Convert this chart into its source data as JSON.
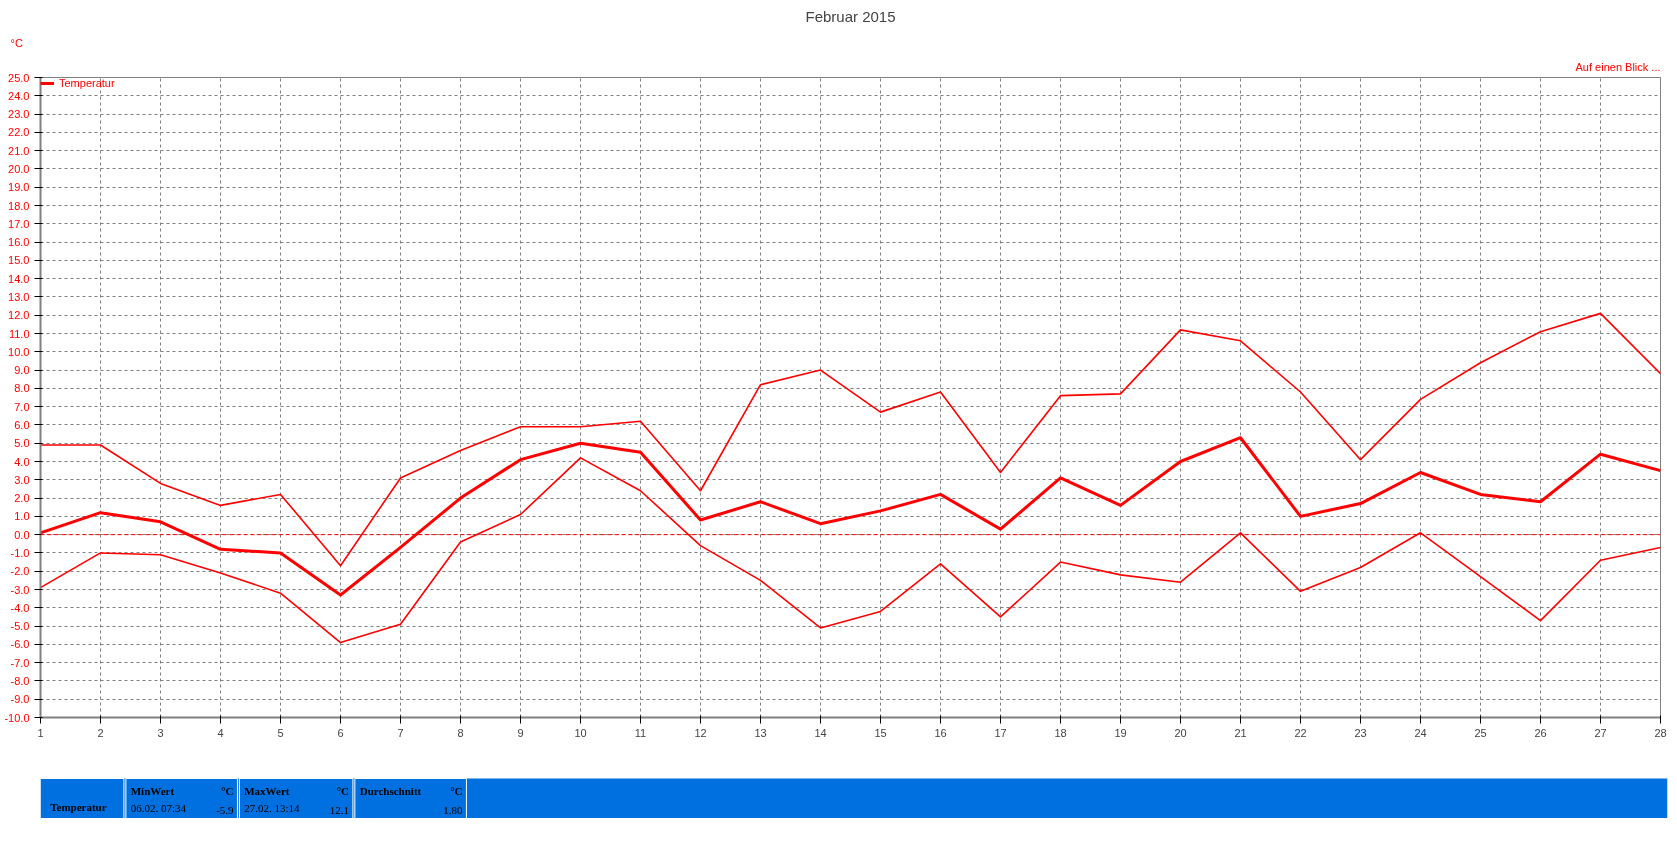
{
  "chart_data": {
    "type": "line",
    "title": "Februar 2015",
    "ylabel": "°C",
    "x": [
      1,
      2,
      3,
      4,
      5,
      6,
      7,
      8,
      9,
      10,
      11,
      12,
      13,
      14,
      15,
      16,
      17,
      18,
      19,
      20,
      21,
      22,
      23,
      24,
      25,
      26,
      27,
      28
    ],
    "series": [
      {
        "color": "#ff0000",
        "values": [
          4.9,
          4.9,
          2.8,
          1.6,
          2.2,
          -1.7,
          3.1,
          4.6,
          5.9,
          5.9,
          6.2,
          2.4,
          8.2,
          9.0,
          6.7,
          7.8,
          3.4,
          7.6,
          7.7,
          11.2,
          10.6,
          7.8,
          4.1,
          7.4,
          9.4,
          11.1,
          12.1,
          8.8
        ]
      },
      {
        "name": "Temperatur",
        "color": "#ff0000",
        "values": [
          0.1,
          1.2,
          0.7,
          -0.8,
          -1.0,
          -3.3,
          -0.7,
          2.0,
          4.1,
          5.0,
          4.5,
          0.8,
          1.8,
          0.6,
          1.3,
          2.2,
          0.3,
          3.1,
          1.6,
          4.0,
          5.3,
          1.0,
          1.7,
          3.4,
          2.2,
          1.8,
          4.4,
          3.5
        ]
      },
      {
        "color": "#ff0000",
        "values": [
          -2.9,
          -1.0,
          -1.1,
          -2.1,
          -3.2,
          -5.9,
          -4.9,
          -0.4,
          1.1,
          4.2,
          2.4,
          -0.6,
          -2.5,
          -5.1,
          -4.2,
          -1.6,
          -4.5,
          -1.5,
          -2.2,
          -2.6,
          0.1,
          -3.1,
          -1.8,
          0.1,
          -2.3,
          -4.7,
          -1.4,
          -0.7
        ]
      }
    ],
    "xlim": [
      1,
      28
    ],
    "xticks": [
      1,
      2,
      3,
      4,
      5,
      6,
      7,
      8,
      9,
      10,
      11,
      12,
      13,
      14,
      15,
      16,
      17,
      18,
      19,
      20,
      21,
      22,
      23,
      24,
      25,
      26,
      27,
      28
    ],
    "ylim": [
      -10,
      25
    ],
    "yticks": [
      {
        "value": -10,
        "label": "-10.0"
      },
      {
        "value": -9,
        "label": "-9.0"
      },
      {
        "value": -8,
        "label": "-8.0"
      },
      {
        "value": -7,
        "label": "-7.0"
      },
      {
        "value": -6,
        "label": "-6.0"
      },
      {
        "value": -5,
        "label": "-5.0"
      },
      {
        "value": -4,
        "label": "-4.0"
      },
      {
        "value": -3,
        "label": "-3.0"
      },
      {
        "value": -2,
        "label": "-2.0"
      },
      {
        "value": -1,
        "label": "-1.0"
      },
      {
        "value": 0,
        "label": "0.0"
      },
      {
        "value": 1,
        "label": "1.0"
      },
      {
        "value": 2,
        "label": "2.0"
      },
      {
        "value": 3,
        "label": "3.0"
      },
      {
        "value": 4,
        "label": "4.0"
      },
      {
        "value": 5,
        "label": "5.0"
      },
      {
        "value": 6,
        "label": "6.0"
      },
      {
        "value": 7,
        "label": "7.0"
      },
      {
        "value": 8,
        "label": "8.0"
      },
      {
        "value": 9,
        "label": "9.0"
      },
      {
        "value": 10,
        "label": "10.0"
      },
      {
        "value": 11,
        "label": "11.0"
      },
      {
        "value": 12,
        "label": "12.0"
      },
      {
        "value": 13,
        "label": "13.0"
      },
      {
        "value": 14,
        "label": "14.0"
      },
      {
        "value": 15,
        "label": "15.0"
      },
      {
        "value": 16,
        "label": "16.0"
      },
      {
        "value": 17,
        "label": "17.0"
      },
      {
        "value": 18,
        "label": "18.0"
      },
      {
        "value": 19,
        "label": "19.0"
      },
      {
        "value": 20,
        "label": "20.0"
      },
      {
        "value": 21,
        "label": "21.0"
      },
      {
        "value": 22,
        "label": "22.0"
      },
      {
        "value": 23,
        "label": "23.0"
      },
      {
        "value": 24,
        "label": "24.0"
      },
      {
        "value": 25,
        "label": "25.0"
      }
    ],
    "ref_lines": [
      {
        "axis": "y",
        "value": 0,
        "color": "#ff0000",
        "line_style": "dashed"
      }
    ],
    "grid": true,
    "legend": "top left",
    "marker": "none",
    "line_style": "solid",
    "annotations": [
      "Auf einen Blick ...",
      "Temperatur",
      "MinWert",
      "°C",
      "06.02.  07:34",
      "-5.9",
      "MaxWert",
      "°C",
      "27.02.  13:14",
      "12.1",
      "Durchschnitt",
      "°C",
      "1.80"
    ]
  }
}
